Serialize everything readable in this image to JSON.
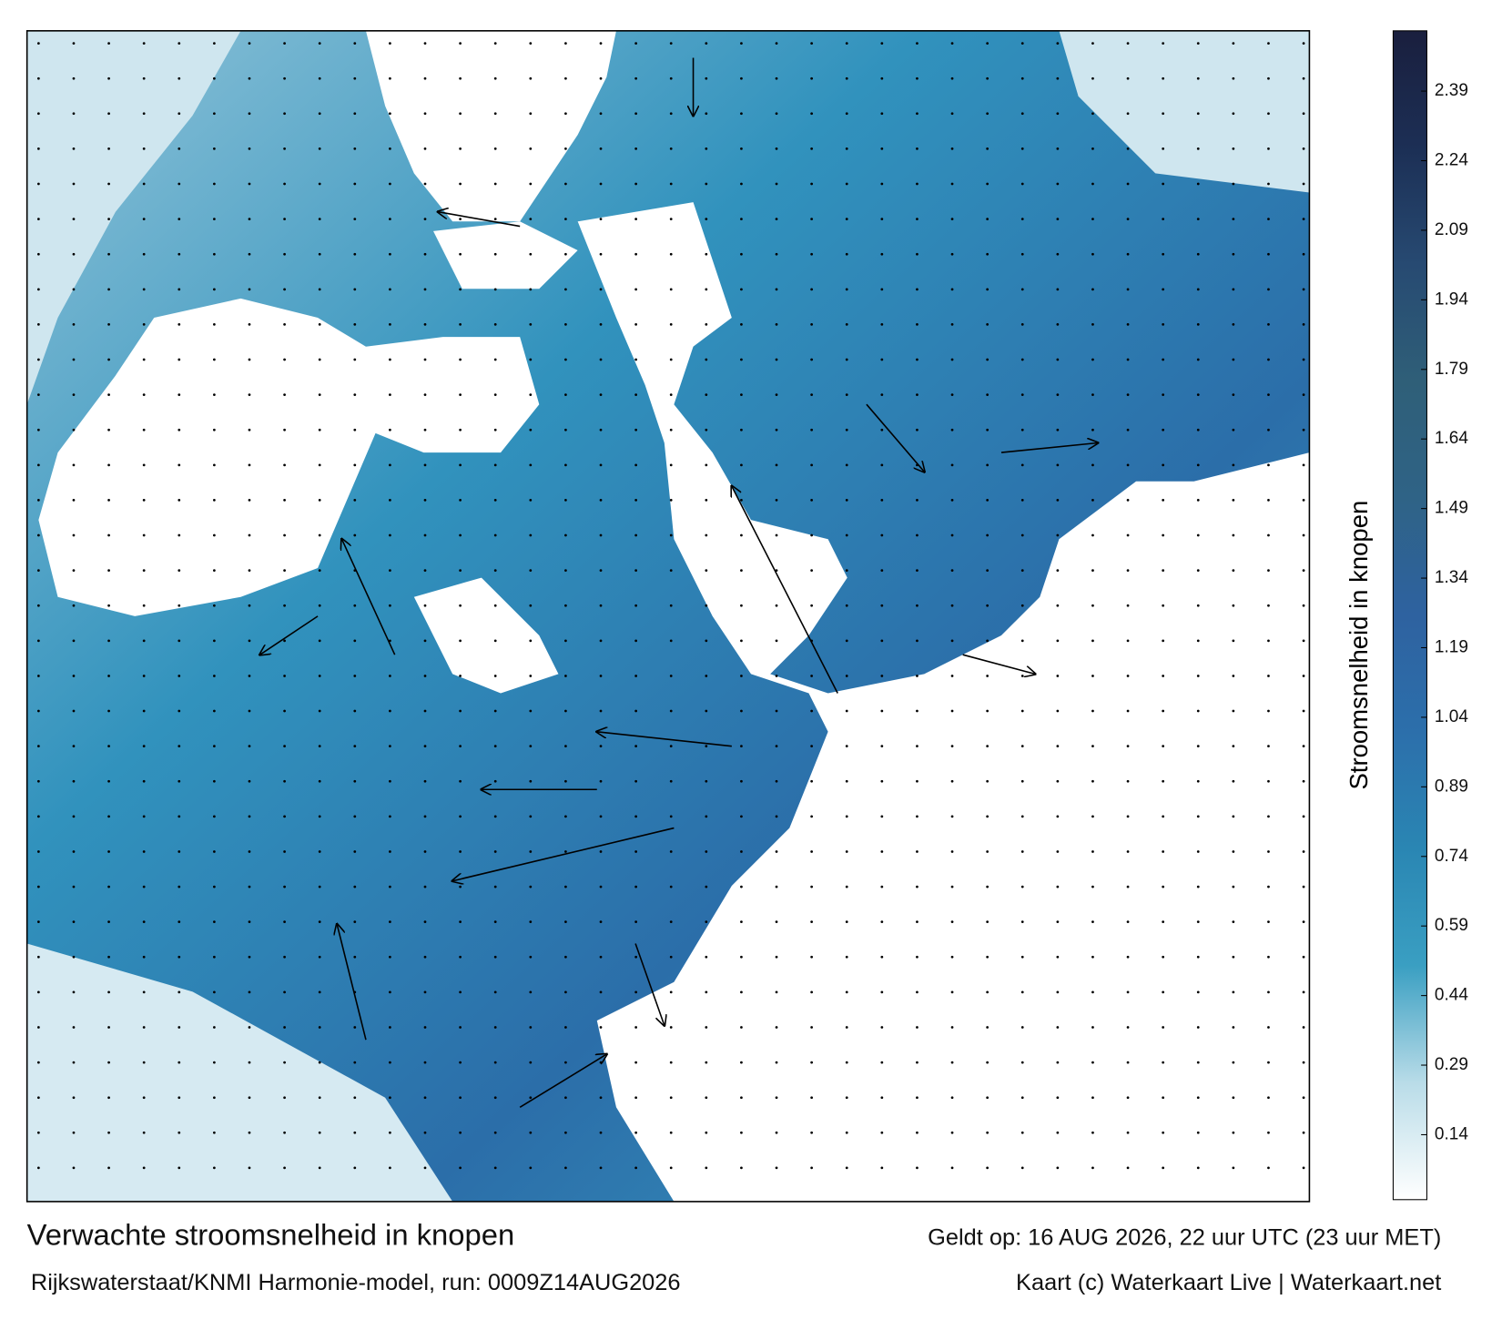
{
  "map": {
    "title": "Verwachte stroomsnelheid in knopen",
    "subtitle": "Rijkswaterstaat/KNMI Harmonie-model, run: 0009Z14AUG2026",
    "valid": "Geldt op: 16 AUG 2026, 22 uur UTC (23 uur MET)",
    "credit": "Kaart (c) Waterkaart Live | Waterkaart.net"
  },
  "colorbar": {
    "label": "Stroomsnelheid in knopen",
    "lim": [
      0,
      2.52
    ],
    "ticks": [
      0.14,
      0.29,
      0.44,
      0.59,
      0.74,
      0.89,
      1.04,
      1.19,
      1.34,
      1.49,
      1.64,
      1.79,
      1.94,
      2.09,
      2.24,
      2.39
    ],
    "colors": [
      "#ffffff",
      "#b9dce8",
      "#3a9fc2",
      "#2a86b3",
      "#2c6fab",
      "#2e62a0",
      "#2f6386",
      "#2f5f78",
      "#274a72",
      "#1c2f55",
      "#1a1f3e"
    ]
  }
}
